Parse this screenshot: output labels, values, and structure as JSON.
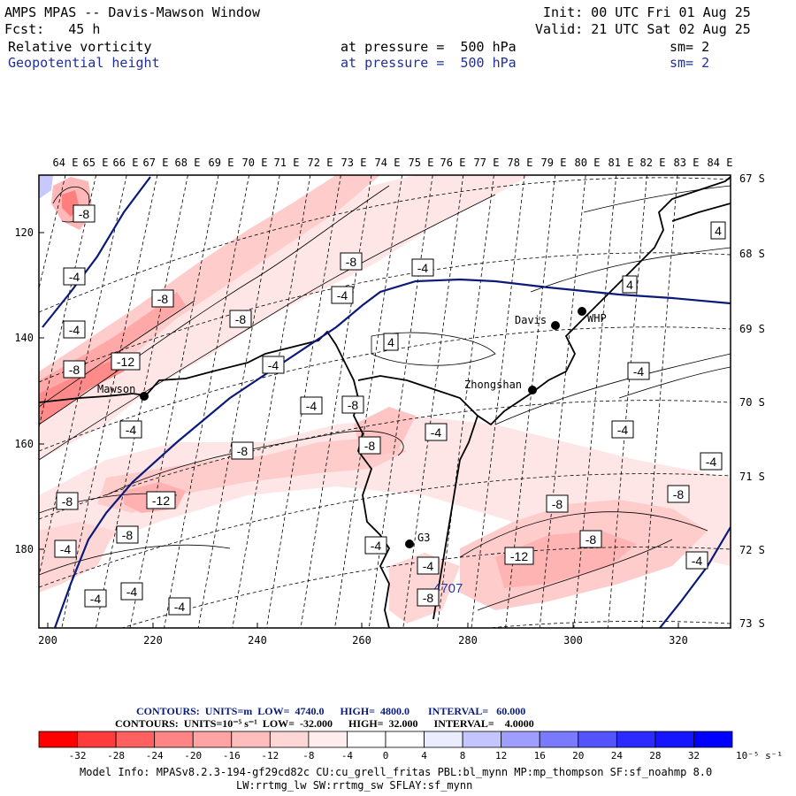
{
  "header": {
    "title": "AMPS MPAS -- Davis-Mawson Window",
    "fcst": "Fcst:   45 h",
    "init": "Init: 00 UTC Fri 01 Aug 25",
    "valid": "Valid: 21 UTC Sat 02 Aug 25",
    "field1": {
      "name": "Relative vorticity",
      "level": "at pressure =  500 hPa",
      "sm": "sm= 2"
    },
    "field2": {
      "name": "Geopotential height",
      "level": "at pressure =  500 hPa",
      "sm": "sm= 2"
    }
  },
  "map": {
    "lon_labels": [
      "64 E",
      "65 E",
      "66 E",
      "67 E",
      "68 E",
      "69 E",
      "70 E",
      "71 E",
      "72 E",
      "73 E",
      "74 E",
      "75 E",
      "76 E",
      "77 E",
      "78 E",
      "79 E",
      "80 E",
      "81 E",
      "82 E",
      "83 E",
      "84 E"
    ],
    "lat_labels": [
      "67 S",
      "68 S",
      "69 S",
      "70 S",
      "71 S",
      "72 S",
      "73 S"
    ],
    "x_ticks": [
      "200",
      "220",
      "240",
      "260",
      "280",
      "300",
      "320"
    ],
    "y_ticks": [
      "120",
      "140",
      "160",
      "180"
    ],
    "stations": [
      "Mawson",
      "Davis",
      "WHP",
      "Zhongshan",
      "G3"
    ],
    "height_label": "4707",
    "vort_labels": [
      {
        "t": "-8"
      },
      {
        "t": "-4"
      },
      {
        "t": "-4"
      },
      {
        "t": "-8"
      },
      {
        "t": "-8"
      },
      {
        "t": "-12"
      },
      {
        "t": "-8"
      },
      {
        "t": "-4"
      },
      {
        "t": "-8"
      },
      {
        "t": "-4"
      },
      {
        "t": "4"
      },
      {
        "t": "-4"
      },
      {
        "t": "-4"
      },
      {
        "t": "-4"
      },
      {
        "t": "-8"
      },
      {
        "t": "-8"
      },
      {
        "t": "-4"
      },
      {
        "t": "-8"
      },
      {
        "t": "-12"
      },
      {
        "t": "-8"
      },
      {
        "t": "-8"
      },
      {
        "t": "-4"
      },
      {
        "t": "-4"
      },
      {
        "t": "-4"
      },
      {
        "t": "-4"
      },
      {
        "t": "-8"
      },
      {
        "t": "-4"
      },
      {
        "t": "-4"
      },
      {
        "t": "4"
      },
      {
        "t": "-4"
      },
      {
        "t": "-4"
      },
      {
        "t": "-4"
      },
      {
        "t": "-8"
      },
      {
        "t": "-8"
      },
      {
        "t": "-12"
      },
      {
        "t": "-8"
      },
      {
        "t": "-4"
      },
      {
        "t": "4"
      }
    ]
  },
  "contours_info": {
    "line1": "CONTOURS:  UNITS=m  LOW=  4740.0      HIGH=  4800.0       INTERVAL=   60.000",
    "line2": "CONTOURS:  UNITS=10⁻⁵ s⁻¹  LOW=  -32.000      HIGH=  32.000      INTERVAL=    4.0000"
  },
  "colorbar": {
    "ticks": [
      "-32",
      "-28",
      "-24",
      "-20",
      "-16",
      "-12",
      "-8",
      "-4",
      "0",
      "4",
      "8",
      "12",
      "16",
      "20",
      "24",
      "28",
      "32"
    ],
    "unit": "10⁻⁵ s⁻¹",
    "colors": [
      "#ff0000",
      "#ff3b3b",
      "#ff6161",
      "#ff8585",
      "#ffa3a3",
      "#ffbdbd",
      "#ffd6d6",
      "#ffecec",
      "#ffffff",
      "#ffffff",
      "#ececff",
      "#c4c4ff",
      "#9e9eff",
      "#7a7aff",
      "#5454ff",
      "#2b2bff",
      "#0000ff"
    ]
  },
  "footer": {
    "line1": "Model Info: MPASv8.2.3-194-gf29cd82c CU:cu_grell_fritas PBL:bl_mynn MP:mp_thompson SF:sf_noahmp 8.0",
    "line2": "LW:rrtmg_lw SW:rrtmg_sw SFLAY:sf_mynn"
  }
}
